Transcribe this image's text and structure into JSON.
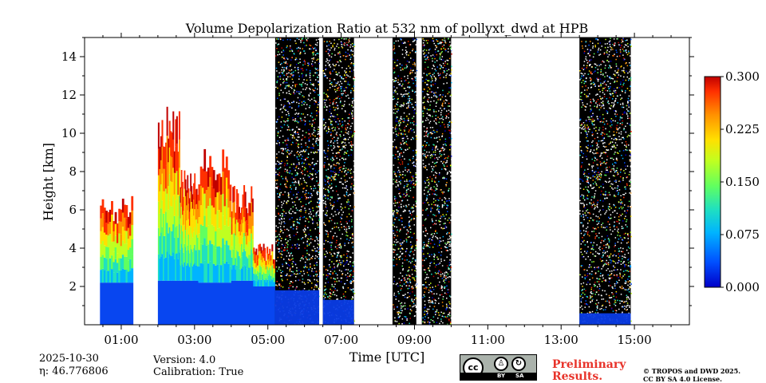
{
  "chart_data": {
    "type": "heatmap",
    "title": "Volume Depolarization Ratio at 532 nm of pollyxt_dwd at HPB",
    "xlabel": "Time [UTC]",
    "ylabel": "Height [km]",
    "xlim": [
      0.0,
      16.5
    ],
    "ylim": [
      0.0,
      15.0
    ],
    "x_ticks": [
      {
        "value": 1,
        "label": "01:00"
      },
      {
        "value": 3,
        "label": "03:00"
      },
      {
        "value": 5,
        "label": "05:00"
      },
      {
        "value": 7,
        "label": "07:00"
      },
      {
        "value": 9,
        "label": "09:00"
      },
      {
        "value": 11,
        "label": "11:00"
      },
      {
        "value": 13,
        "label": "13:00"
      },
      {
        "value": 15,
        "label": "15:00"
      }
    ],
    "y_ticks": [
      {
        "value": 2,
        "label": "2"
      },
      {
        "value": 4,
        "label": "4"
      },
      {
        "value": 6,
        "label": "6"
      },
      {
        "value": 8,
        "label": "8"
      },
      {
        "value": 10,
        "label": "10"
      },
      {
        "value": 12,
        "label": "12"
      },
      {
        "value": 14,
        "label": "14"
      }
    ],
    "colorbar": {
      "range": [
        0.0,
        0.3
      ],
      "ticks": [
        {
          "value": 0.0,
          "label": "0.000"
        },
        {
          "value": 0.075,
          "label": "0.075"
        },
        {
          "value": 0.15,
          "label": "0.150"
        },
        {
          "value": 0.225,
          "label": "0.225"
        },
        {
          "value": 0.3,
          "label": "0.300"
        }
      ],
      "colormap": "jet",
      "colors": [
        "#0000c8",
        "#0050ff",
        "#00b4ff",
        "#20e0c0",
        "#60ff60",
        "#c0ff20",
        "#ffe000",
        "#ff9000",
        "#ff3000",
        "#c00000"
      ]
    },
    "profile_segments": [
      {
        "t_start": 0.42,
        "t_end": 1.32,
        "cloud_top_km": 6.0,
        "ground_signal_top_km": 2.2,
        "noisy": false
      },
      {
        "t_start": 2.0,
        "t_end": 2.6,
        "cloud_top_km": 10.2,
        "ground_signal_top_km": 2.3,
        "noisy": false
      },
      {
        "t_start": 2.6,
        "t_end": 3.1,
        "cloud_top_km": 7.5,
        "ground_signal_top_km": 2.3,
        "noisy": false
      },
      {
        "t_start": 3.1,
        "t_end": 4.0,
        "cloud_top_km": 8.3,
        "ground_signal_top_km": 2.2,
        "noisy": false
      },
      {
        "t_start": 4.0,
        "t_end": 4.6,
        "cloud_top_km": 6.6,
        "ground_signal_top_km": 2.3,
        "noisy": false
      },
      {
        "t_start": 4.6,
        "t_end": 5.2,
        "cloud_top_km": 3.8,
        "ground_signal_top_km": 2.0,
        "noisy": false
      },
      {
        "t_start": 5.2,
        "t_end": 6.4,
        "cloud_top_km": 0.0,
        "ground_signal_top_km": 1.8,
        "noisy": true
      },
      {
        "t_start": 6.5,
        "t_end": 7.35,
        "cloud_top_km": 0.0,
        "ground_signal_top_km": 1.3,
        "noisy": true
      },
      {
        "t_start": 8.4,
        "t_end": 9.05,
        "cloud_top_km": 0.0,
        "ground_signal_top_km": 0.0,
        "noisy": true
      },
      {
        "t_start": 9.2,
        "t_end": 10.0,
        "cloud_top_km": 0.0,
        "ground_signal_top_km": 0.0,
        "noisy": true
      },
      {
        "t_start": 13.5,
        "t_end": 14.9,
        "cloud_top_km": 0.0,
        "ground_signal_top_km": 0.6,
        "noisy": true
      }
    ]
  },
  "footer": {
    "date": "2025-10-30",
    "eta_label": "η: 46.776806",
    "version": "Version: 4.0",
    "calibration": "Calibration: True",
    "preliminary": [
      "Preliminary",
      "Results."
    ],
    "copyright": [
      "© TROPOS and DWD 2025.",
      "CC BY SA 4.0 License."
    ],
    "cc_badge": {
      "main": "cc",
      "by": "BY",
      "sa": "SA"
    }
  }
}
